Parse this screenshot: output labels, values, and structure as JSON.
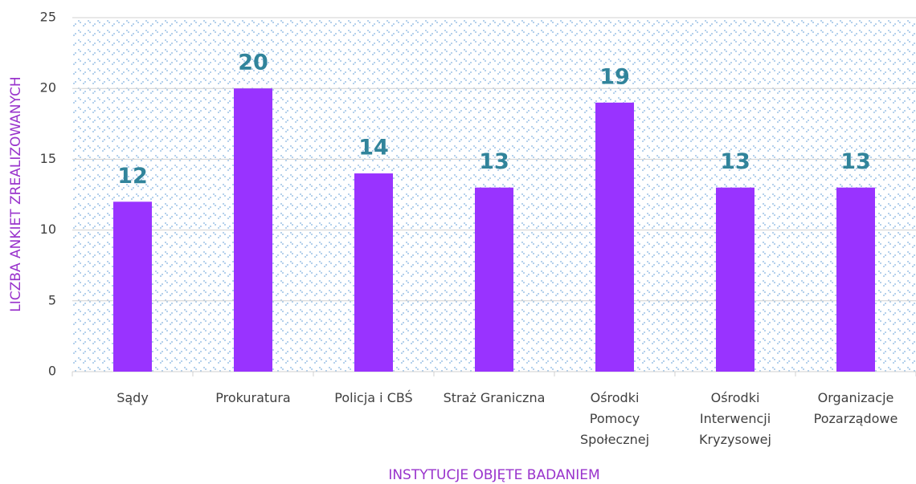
{
  "chart_data": {
    "type": "bar",
    "x_label": "INSTYTUCJE OBJĘTE BADANIEM",
    "y_label": "LICZBA ANKIET ZREALIZOWANYCH",
    "categories": [
      "Sądy",
      "Prokuratura",
      "Policja i CBŚ",
      "Straż Graniczna",
      "Ośrodki\nPomocy\nSpołecznej",
      "Ośrodki\nInterwencji\nKryzysowej",
      "Organizacje\nPozarządowe"
    ],
    "values": [
      12,
      20,
      14,
      13,
      19,
      13,
      13
    ],
    "color": "#9933ff",
    "label_color": "#31849b",
    "ylim": [
      0,
      25
    ],
    "yticks": [
      0,
      5,
      10,
      15,
      20,
      25
    ],
    "grid": true
  }
}
